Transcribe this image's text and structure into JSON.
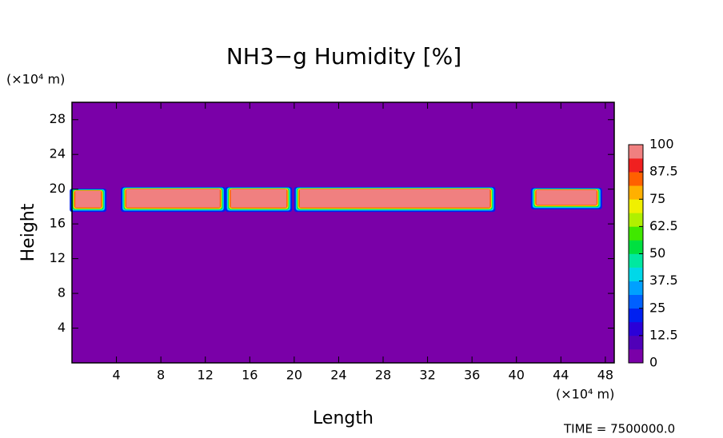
{
  "chart_data": {
    "type": "contour",
    "title": "NH3−g Humidity [%]",
    "y_unit": "(×10⁴ m)",
    "x_unit": "(×10⁴ m)",
    "ylabel": "Height",
    "xlabel": "Length",
    "footer": "TIME = 7500000.0",
    "xlim": [
      0,
      48.8
    ],
    "ylim": [
      0,
      30
    ],
    "xticks": [
      4,
      8,
      12,
      16,
      20,
      24,
      28,
      32,
      36,
      40,
      44,
      48
    ],
    "yticks": [
      4,
      8,
      12,
      16,
      20,
      24,
      28
    ],
    "background_value": 0,
    "layer": [
      {
        "x": [
          0.3,
          2.6
        ],
        "y": [
          17.9,
          19.8
        ],
        "value": 100
      },
      {
        "x": [
          4.9,
          13.3
        ],
        "y": [
          17.9,
          20.0
        ],
        "value": 100
      },
      {
        "x": [
          14.3,
          19.3
        ],
        "y": [
          17.9,
          20.0
        ],
        "value": 100
      },
      {
        "x": [
          20.5,
          37.6
        ],
        "y": [
          17.9,
          20.0
        ],
        "value": 100
      },
      {
        "x": [
          41.8,
          47.2
        ],
        "y": [
          18.2,
          19.9
        ],
        "value": 100
      }
    ],
    "clim": [
      0,
      100
    ],
    "cticks": [
      0,
      12.5,
      25,
      37.5,
      50,
      62.5,
      75,
      87.5,
      100
    ],
    "colorscale": [
      "#7a00a8",
      "#5000b8",
      "#2a00d8",
      "#0020f0",
      "#0060ff",
      "#00a0ff",
      "#00d8e8",
      "#00e8a0",
      "#00e040",
      "#40e800",
      "#b0f000",
      "#f0f000",
      "#ffb000",
      "#ff6000",
      "#f02020",
      "#f08080"
    ]
  }
}
